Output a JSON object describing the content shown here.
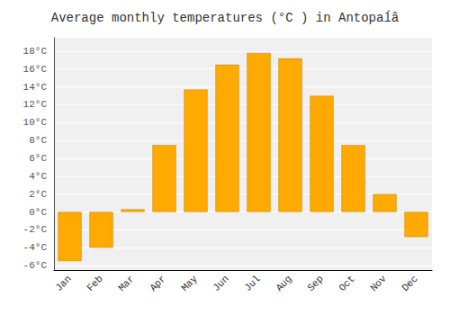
{
  "chart_data": {
    "type": "bar",
    "title": "Average monthly temperatures (°C ) in Antopaĺâ",
    "categories": [
      "Jan",
      "Feb",
      "Mar",
      "Apr",
      "May",
      "Jun",
      "Jul",
      "Aug",
      "Sep",
      "Oct",
      "Nov",
      "Dec"
    ],
    "values": [
      -5.5,
      -4.0,
      0.3,
      7.5,
      13.7,
      16.5,
      17.8,
      17.2,
      13.0,
      7.5,
      2.0,
      -2.8
    ],
    "color": "#FFAA00",
    "ylim": [
      -6.5,
      19.5
    ],
    "yticks": [
      {
        "value": -6,
        "label": "-6°C"
      },
      {
        "value": -4,
        "label": "-4°C"
      },
      {
        "value": -2,
        "label": "-2°C"
      },
      {
        "value": 0,
        "label": "0°C"
      },
      {
        "value": 2,
        "label": "2°C"
      },
      {
        "value": 4,
        "label": "4°C"
      },
      {
        "value": 6,
        "label": "6°C"
      },
      {
        "value": 8,
        "label": "8°C"
      },
      {
        "value": 10,
        "label": "10°C"
      },
      {
        "value": 12,
        "label": "12°C"
      },
      {
        "value": 14,
        "label": "14°C"
      },
      {
        "value": 16,
        "label": "16°C"
      },
      {
        "value": 18,
        "label": "18°C"
      }
    ],
    "grid": true
  }
}
